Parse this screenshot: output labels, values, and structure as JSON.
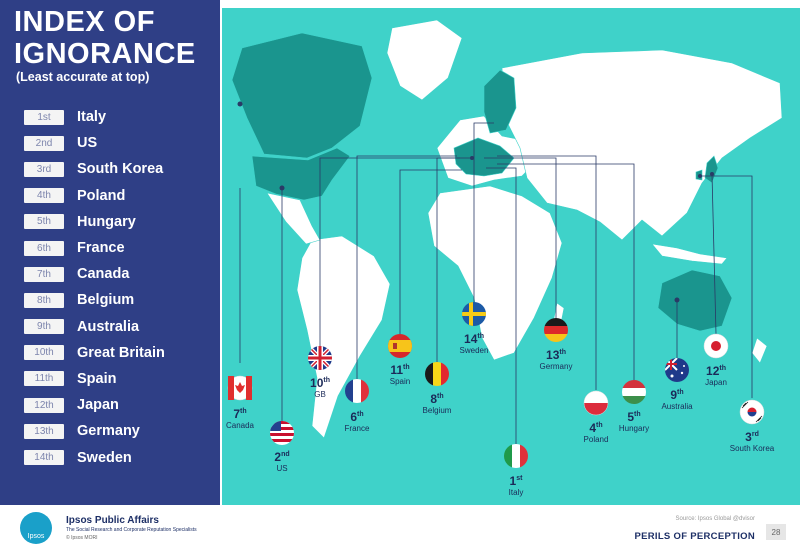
{
  "sidebar": {
    "title_line1": "INDEX OF",
    "title_line2": "IGNORANCE",
    "subtitle": "(Least accurate at top)",
    "rankings": [
      {
        "rank": "1st",
        "country": "Italy"
      },
      {
        "rank": "2nd",
        "country": "US"
      },
      {
        "rank": "3rd",
        "country": "South Korea"
      },
      {
        "rank": "4th",
        "country": "Poland"
      },
      {
        "rank": "5th",
        "country": "Hungary"
      },
      {
        "rank": "6th",
        "country": "France"
      },
      {
        "rank": "7th",
        "country": "Canada"
      },
      {
        "rank": "8th",
        "country": "Belgium"
      },
      {
        "rank": "9th",
        "country": "Australia"
      },
      {
        "rank": "10th",
        "country": "Great Britain"
      },
      {
        "rank": "11th",
        "country": "Spain"
      },
      {
        "rank": "12th",
        "country": "Japan"
      },
      {
        "rank": "13th",
        "country": "Germany"
      },
      {
        "rank": "14th",
        "country": "Sweden"
      }
    ]
  },
  "map": {
    "colors": {
      "ocean": "#3fd2c9",
      "land": "#ffffff",
      "highlight": "#1a958e",
      "highlight_dark": "#147a74",
      "leader": "#2a3a66"
    },
    "labels": [
      {
        "num": "7",
        "suffix": "th",
        "name": "Canada",
        "flag": "canada-flag-icon"
      },
      {
        "num": "2",
        "suffix": "nd",
        "name": "US",
        "flag": "us-flag-icon"
      },
      {
        "num": "10",
        "suffix": "th",
        "name": "GB",
        "flag": "uk-flag-icon"
      },
      {
        "num": "6",
        "suffix": "th",
        "name": "France",
        "flag": "france-flag-icon"
      },
      {
        "num": "11",
        "suffix": "th",
        "name": "Spain",
        "flag": "spain-flag-icon"
      },
      {
        "num": "8",
        "suffix": "th",
        "name": "Belgium",
        "flag": "belgium-flag-icon"
      },
      {
        "num": "14",
        "suffix": "th",
        "name": "Sweden",
        "flag": "sweden-flag-icon"
      },
      {
        "num": "1",
        "suffix": "st",
        "name": "Italy",
        "flag": "italy-flag-icon"
      },
      {
        "num": "13",
        "suffix": "th",
        "name": "Germany",
        "flag": "germany-flag-icon"
      },
      {
        "num": "4",
        "suffix": "th",
        "name": "Poland",
        "flag": "poland-flag-icon"
      },
      {
        "num": "5",
        "suffix": "th",
        "name": "Hungary",
        "flag": "hungary-flag-icon"
      },
      {
        "num": "9",
        "suffix": "th",
        "name": "Australia",
        "flag": "australia-flag-icon"
      },
      {
        "num": "12",
        "suffix": "th",
        "name": "Japan",
        "flag": "japan-flag-icon"
      },
      {
        "num": "3",
        "suffix": "rd",
        "name": "South Korea",
        "flag": "south-korea-flag-icon"
      }
    ]
  },
  "footer": {
    "logo_text": "Ipsos",
    "company": "Ipsos Public Affairs",
    "tagline": "The Social Research and Corporate Reputation Specialists",
    "copyright": "© Ipsos MORI",
    "source": "Source: Ipsos Global @dvisor",
    "section": "PERILS OF PERCEPTION",
    "page": "28"
  }
}
